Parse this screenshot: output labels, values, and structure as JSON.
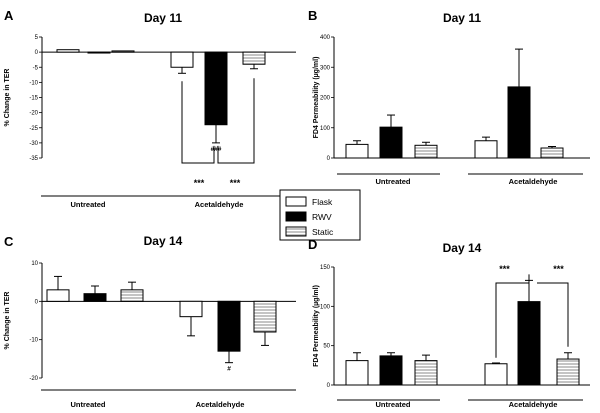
{
  "figure": {
    "legend": [
      {
        "name": "Flask",
        "style": "open"
      },
      {
        "name": "RWV",
        "style": "filled"
      },
      {
        "name": "Static",
        "style": "striped"
      }
    ],
    "colors": {
      "rwv": "#000000",
      "flask": "#ffffff",
      "static_stripe": "#888888",
      "axis": "#000000"
    }
  },
  "chart_data": [
    {
      "panel": "A",
      "type": "bar",
      "title": "Day 11",
      "ylabel": "% Change in TER",
      "xlabel": "",
      "ylim": [
        -35,
        5
      ],
      "yticks": [
        5,
        0,
        -5,
        -10,
        -15,
        -20,
        -25,
        -30,
        -35
      ],
      "categories": [
        "Untreated",
        "Acetaldehyde"
      ],
      "series": [
        {
          "name": "Flask",
          "values": [
            0.8,
            -5
          ],
          "errors": [
            0,
            2
          ]
        },
        {
          "name": "RWV",
          "values": [
            -0.3,
            -24
          ],
          "errors": [
            0,
            6
          ]
        },
        {
          "name": "Static",
          "values": [
            0.4,
            -4
          ],
          "errors": [
            0,
            1.5
          ]
        }
      ],
      "annotations": [
        {
          "text": "###",
          "target": "Acetaldehyde RWV"
        },
        {
          "text": "***",
          "between": "Flask-RWV"
        },
        {
          "text": "***",
          "between": "RWV-Static"
        }
      ]
    },
    {
      "panel": "B",
      "type": "bar",
      "title": "Day 11",
      "ylabel": "FD4 Permeability (µg/ml)",
      "xlabel": "",
      "ylim": [
        0,
        400
      ],
      "yticks": [
        0,
        100,
        200,
        300,
        400
      ],
      "categories": [
        "Untreated",
        "Acetaldehyde"
      ],
      "series": [
        {
          "name": "Flask",
          "values": [
            45,
            57
          ],
          "errors": [
            12,
            12
          ]
        },
        {
          "name": "RWV",
          "values": [
            102,
            235
          ],
          "errors": [
            40,
            125
          ]
        },
        {
          "name": "Static",
          "values": [
            42,
            33
          ],
          "errors": [
            10,
            5
          ]
        }
      ],
      "annotations": []
    },
    {
      "panel": "C",
      "type": "bar",
      "title": "Day 14",
      "ylabel": "% Change in TER",
      "xlabel": "",
      "ylim": [
        -20,
        10
      ],
      "yticks": [
        10,
        0,
        -10,
        -20
      ],
      "categories": [
        "Untreated",
        "Acetaldehyde"
      ],
      "series": [
        {
          "name": "Flask",
          "values": [
            3,
            -4
          ],
          "errors": [
            3.5,
            5
          ]
        },
        {
          "name": "RWV",
          "values": [
            2,
            -13
          ],
          "errors": [
            2,
            3
          ]
        },
        {
          "name": "Static",
          "values": [
            3,
            -8
          ],
          "errors": [
            2,
            3.5
          ]
        }
      ],
      "annotations": [
        {
          "text": "#",
          "target": "Acetaldehyde RWV"
        }
      ]
    },
    {
      "panel": "D",
      "type": "bar",
      "title": "Day 14",
      "ylabel": "FD4 Permeability (µg/ml)",
      "xlabel": "",
      "ylim": [
        0,
        150
      ],
      "yticks": [
        0,
        50,
        100,
        150
      ],
      "categories": [
        "Untreated",
        "Acetaldehyde"
      ],
      "series": [
        {
          "name": "Flask",
          "values": [
            31,
            27
          ],
          "errors": [
            10,
            1
          ]
        },
        {
          "name": "RWV",
          "values": [
            37,
            106
          ],
          "errors": [
            4,
            27
          ]
        },
        {
          "name": "Static",
          "values": [
            31,
            33
          ],
          "errors": [
            7,
            8
          ]
        }
      ],
      "annotations": [
        {
          "text": "###",
          "target": "Acetaldehyde RWV"
        },
        {
          "text": "***",
          "between": "Flask-RWV"
        },
        {
          "text": "***",
          "between": "RWV-Static"
        }
      ]
    }
  ]
}
